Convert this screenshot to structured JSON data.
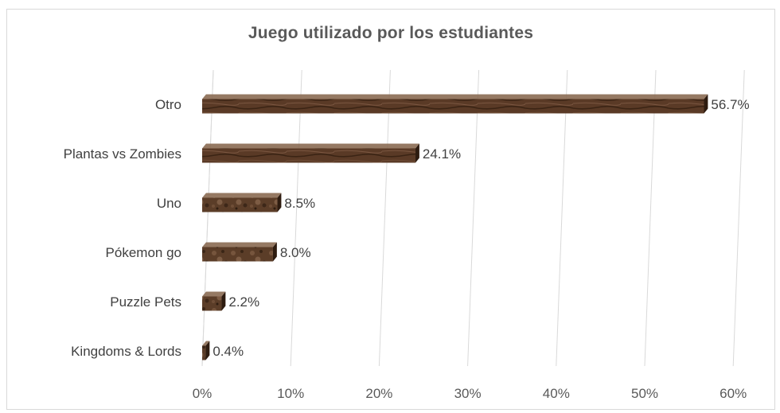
{
  "chart_data": {
    "type": "bar",
    "orientation": "horizontal",
    "title": "Juego utilizado por los estudiantes",
    "categories": [
      "Otro",
      "Plantas vs Zombies",
      "Uno",
      "Pókemon go",
      "Puzzle Pets",
      "Kingdoms & Lords"
    ],
    "values": [
      56.7,
      24.1,
      8.5,
      8.0,
      2.2,
      0.4
    ],
    "data_labels": [
      "56.7%",
      "24.1%",
      "8.5%",
      "8.0%",
      "2.2%",
      "0.4%"
    ],
    "x_ticks": [
      "0%",
      "10%",
      "20%",
      "30%",
      "40%",
      "50%",
      "60%"
    ],
    "xlim": [
      0,
      60
    ],
    "grid": true,
    "legend": "none",
    "colors": {
      "bar_face": "#5a3a26",
      "bar_top": "#8a6a52",
      "bar_side": "#2e1c10",
      "grid": "#d9d9d9"
    }
  }
}
